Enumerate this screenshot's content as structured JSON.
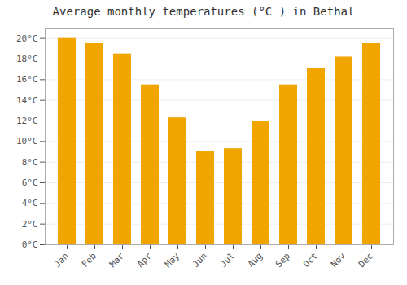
{
  "chart_data": {
    "type": "bar",
    "title": "Average monthly temperatures (°C ) in Bethal",
    "categories": [
      "Jan",
      "Feb",
      "Mar",
      "Apr",
      "May",
      "Jun",
      "Jul",
      "Aug",
      "Sep",
      "Oct",
      "Nov",
      "Dec"
    ],
    "values": [
      20.0,
      19.5,
      18.5,
      15.5,
      12.3,
      9.0,
      9.3,
      12.0,
      15.5,
      17.1,
      18.2,
      19.5
    ],
    "color": "#F0A500",
    "ylim": [
      0,
      21
    ],
    "yticks": [
      {
        "value": 0,
        "label": "0°C"
      },
      {
        "value": 2,
        "label": "2°C"
      },
      {
        "value": 4,
        "label": "4°C"
      },
      {
        "value": 6,
        "label": "6°C"
      },
      {
        "value": 8,
        "label": "8°C"
      },
      {
        "value": 10,
        "label": "10°C"
      },
      {
        "value": 12,
        "label": "12°C"
      },
      {
        "value": 14,
        "label": "14°C"
      },
      {
        "value": 16,
        "label": "16°C"
      },
      {
        "value": 18,
        "label": "18°C"
      },
      {
        "value": 20,
        "label": "20°C"
      }
    ],
    "grid": true
  }
}
